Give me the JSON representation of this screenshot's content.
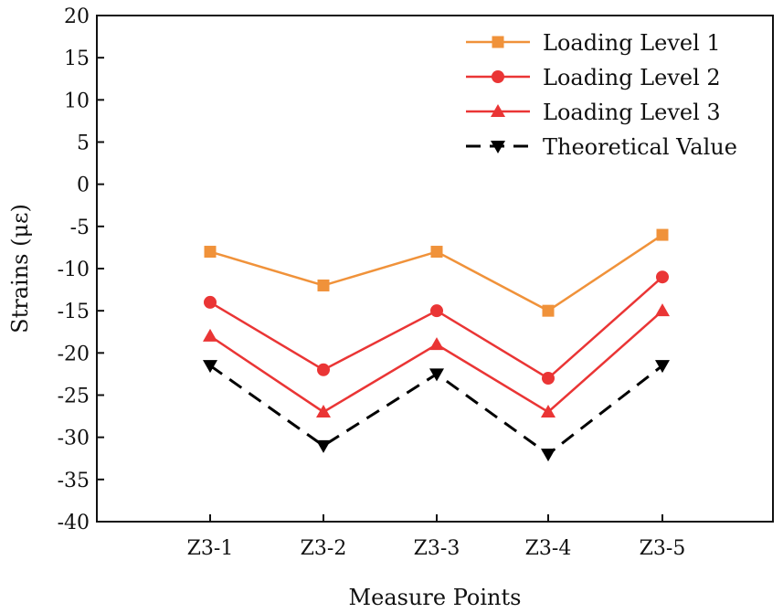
{
  "chart_data": {
    "type": "line",
    "title": "",
    "xlabel": "Measure Points",
    "ylabel": "Strains (με)",
    "categories": [
      "Z3-1",
      "Z3-2",
      "Z3-3",
      "Z3-4",
      "Z3-5"
    ],
    "ylim": [
      -40,
      20
    ],
    "yticks": [
      "20",
      "15",
      "10",
      "5",
      "0",
      "-5",
      "-10",
      "-15",
      "-20",
      "-25",
      "-30",
      "-35",
      "-40"
    ],
    "grid": false,
    "legend_position": "top-right",
    "series": [
      {
        "name": "Loading Level 1",
        "color": "#F0923A",
        "marker": "square",
        "dash": "solid",
        "values": [
          -8,
          -12,
          -8,
          -15,
          -6
        ]
      },
      {
        "name": "Loading Level 2",
        "color": "#EA3535",
        "marker": "circle",
        "dash": "solid",
        "values": [
          -14,
          -22,
          -15,
          -23,
          -11
        ]
      },
      {
        "name": "Loading Level 3",
        "color": "#EA3535",
        "marker": "triangle-up",
        "dash": "solid",
        "values": [
          -18,
          -27,
          -19,
          -27,
          -15
        ]
      },
      {
        "name": "Theoretical Value",
        "color": "#000000",
        "marker": "triangle-down",
        "dash": "dashed",
        "values": [
          -21.5,
          -31,
          -22.5,
          -32,
          -21.5
        ]
      }
    ]
  }
}
